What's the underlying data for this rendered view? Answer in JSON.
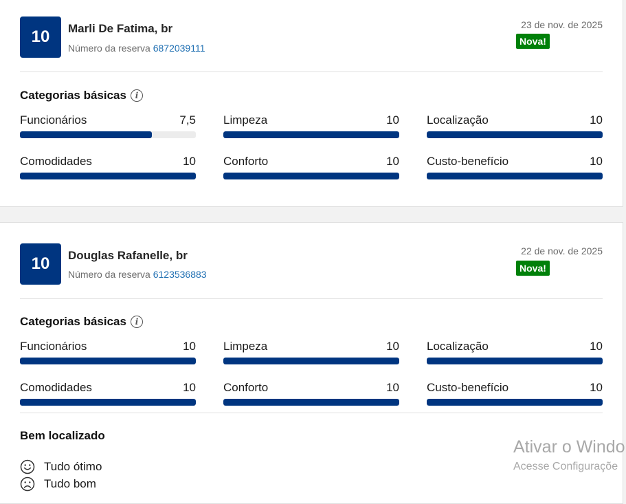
{
  "reviews": [
    {
      "score": "10",
      "name": "Marli De Fatima, br",
      "booking_label": "Número da reserva",
      "booking_number": "6872039111",
      "date": "23 de nov. de 2025",
      "badge": "Nova!",
      "categories_title": "Categorias básicas",
      "metrics": [
        {
          "label": "Funcionários",
          "value": "7,5",
          "fill": 0.75
        },
        {
          "label": "Limpeza",
          "value": "10",
          "fill": 1.0
        },
        {
          "label": "Localização",
          "value": "10",
          "fill": 1.0
        },
        {
          "label": "Comodidades",
          "value": "10",
          "fill": 1.0
        },
        {
          "label": "Conforto",
          "value": "10",
          "fill": 1.0
        },
        {
          "label": "Custo-benefício",
          "value": "10",
          "fill": 1.0
        }
      ]
    },
    {
      "score": "10",
      "name": "Douglas Rafanelle, br",
      "booking_label": "Número da reserva",
      "booking_number": "6123536883",
      "date": "22 de nov. de 2025",
      "badge": "Nova!",
      "categories_title": "Categorias básicas",
      "metrics": [
        {
          "label": "Funcionários",
          "value": "10",
          "fill": 1.0
        },
        {
          "label": "Limpeza",
          "value": "10",
          "fill": 1.0
        },
        {
          "label": "Localização",
          "value": "10",
          "fill": 1.0
        },
        {
          "label": "Comodidades",
          "value": "10",
          "fill": 1.0
        },
        {
          "label": "Conforto",
          "value": "10",
          "fill": 1.0
        },
        {
          "label": "Custo-benefício",
          "value": "10",
          "fill": 1.0
        }
      ],
      "review_title": "Bem localizado",
      "positive_text": "Tudo ótimo",
      "negative_text": "Tudo bom"
    }
  ],
  "watermark": {
    "line1": "Ativar o Windo",
    "line2": "Acesse Configuraçõe"
  },
  "icons": {
    "info": "info-icon",
    "positive": "smiley-face-icon",
    "negative": "sad-face-icon"
  },
  "colors": {
    "score_bg": "#003580",
    "bar_fill": "#003580",
    "badge_bg": "#008009",
    "link": "#1f6fb2"
  }
}
